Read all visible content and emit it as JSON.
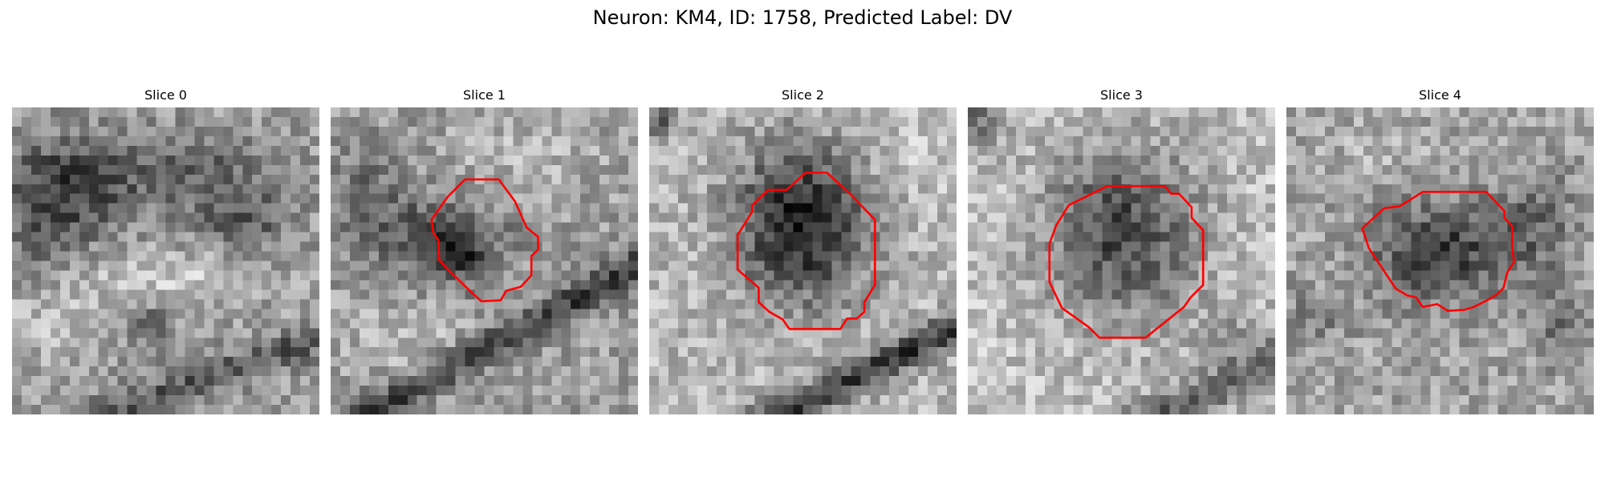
{
  "figure": {
    "title": "Neuron: KM4, ID: 1758, Predicted Label: DV"
  },
  "panels": [
    {
      "title": "Slice 0",
      "has_contour": false
    },
    {
      "title": "Slice 1",
      "has_contour": true
    },
    {
      "title": "Slice 2",
      "has_contour": true
    },
    {
      "title": "Slice 3",
      "has_contour": true
    },
    {
      "title": "Slice 4",
      "has_contour": true
    }
  ],
  "colors": {
    "background": "#ffffff",
    "contour": "#ff0000",
    "colormap": "grayscale"
  }
}
